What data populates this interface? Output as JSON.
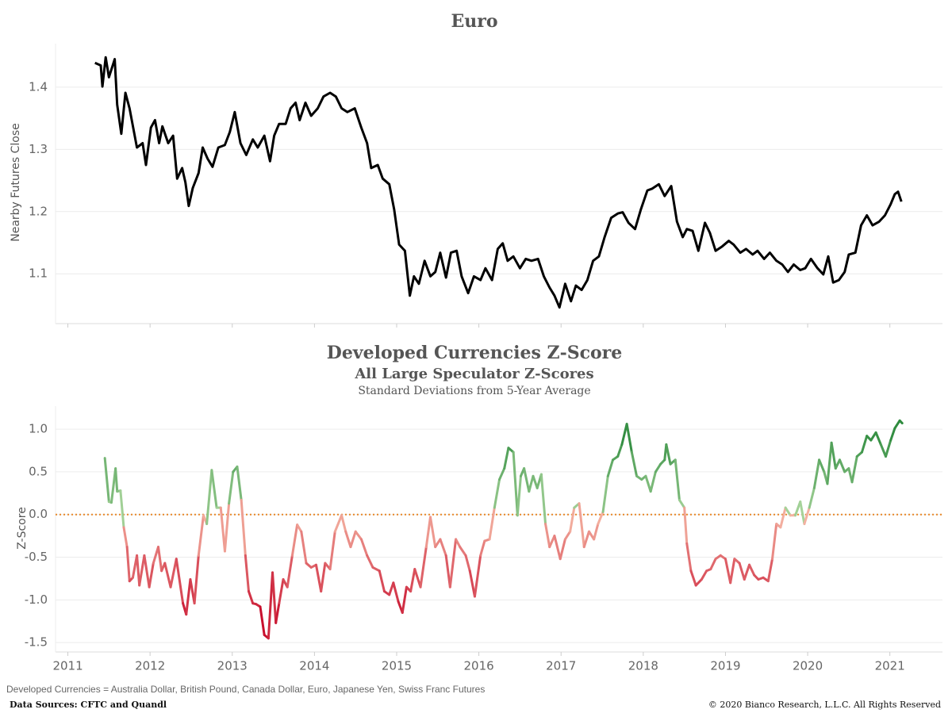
{
  "chart_data": [
    {
      "type": "line",
      "title": "Euro",
      "y_label": "Nearby Futures Close",
      "color": "#000000",
      "xlim": [
        2010.85,
        2021.64
      ],
      "xticks": [
        2011,
        2012,
        2013,
        2014,
        2015,
        2016,
        2017,
        2018,
        2019,
        2020,
        2021
      ],
      "show_x_labels": false,
      "ylim": [
        1.02,
        1.47
      ],
      "yticks": [
        1.1,
        1.2,
        1.3,
        1.4
      ],
      "grid": true,
      "x": [
        2011.33,
        2011.4,
        2011.42,
        2011.46,
        2011.5,
        2011.57,
        2011.6,
        2011.65,
        2011.7,
        2011.75,
        2011.84,
        2011.91,
        2011.95,
        2012.01,
        2012.06,
        2012.11,
        2012.15,
        2012.22,
        2012.28,
        2012.33,
        2012.39,
        2012.43,
        2012.47,
        2012.52,
        2012.59,
        2012.64,
        2012.7,
        2012.76,
        2012.83,
        2012.91,
        2012.97,
        2013.03,
        2013.1,
        2013.17,
        2013.25,
        2013.31,
        2013.39,
        2013.46,
        2013.51,
        2013.57,
        2013.65,
        2013.71,
        2013.77,
        2013.82,
        2013.89,
        2013.96,
        2014.04,
        2014.11,
        2014.19,
        2014.26,
        2014.33,
        2014.4,
        2014.49,
        2014.57,
        2014.64,
        2014.69,
        2014.77,
        2014.83,
        2014.91,
        2014.97,
        2015.03,
        2015.1,
        2015.16,
        2015.21,
        2015.27,
        2015.34,
        2015.41,
        2015.47,
        2015.53,
        2015.6,
        2015.66,
        2015.73,
        2015.79,
        2015.87,
        2015.94,
        2016.02,
        2016.08,
        2016.16,
        2016.23,
        2016.29,
        2016.35,
        2016.42,
        2016.5,
        2016.57,
        2016.64,
        2016.72,
        2016.79,
        2016.86,
        2016.92,
        2016.98,
        2017.05,
        2017.12,
        2017.18,
        2017.25,
        2017.32,
        2017.39,
        2017.46,
        2017.53,
        2017.61,
        2017.69,
        2017.75,
        2017.82,
        2017.9,
        2017.97,
        2018.05,
        2018.11,
        2018.19,
        2018.26,
        2018.34,
        2018.41,
        2018.48,
        2018.53,
        2018.6,
        2018.67,
        2018.75,
        2018.81,
        2018.88,
        2018.96,
        2019.04,
        2019.1,
        2019.18,
        2019.25,
        2019.33,
        2019.39,
        2019.47,
        2019.54,
        2019.62,
        2019.69,
        2019.76,
        2019.83,
        2019.91,
        2019.97,
        2020.04,
        2020.12,
        2020.19,
        2020.25,
        2020.31,
        2020.38,
        2020.45,
        2020.5,
        2020.58,
        2020.65,
        2020.72,
        2020.79,
        2020.87,
        2020.94,
        2021.01,
        2021.06,
        2021.1,
        2021.14
      ],
      "values": [
        1.439,
        1.435,
        1.401,
        1.448,
        1.416,
        1.445,
        1.372,
        1.325,
        1.391,
        1.366,
        1.303,
        1.31,
        1.275,
        1.335,
        1.347,
        1.31,
        1.337,
        1.31,
        1.322,
        1.253,
        1.27,
        1.247,
        1.209,
        1.238,
        1.262,
        1.303,
        1.285,
        1.272,
        1.303,
        1.307,
        1.328,
        1.36,
        1.31,
        1.291,
        1.316,
        1.303,
        1.322,
        1.281,
        1.322,
        1.341,
        1.341,
        1.366,
        1.375,
        1.347,
        1.375,
        1.354,
        1.366,
        1.385,
        1.391,
        1.385,
        1.366,
        1.36,
        1.366,
        1.335,
        1.31,
        1.27,
        1.275,
        1.253,
        1.244,
        1.203,
        1.147,
        1.137,
        1.065,
        1.096,
        1.084,
        1.121,
        1.096,
        1.103,
        1.134,
        1.094,
        1.134,
        1.137,
        1.096,
        1.069,
        1.096,
        1.09,
        1.109,
        1.09,
        1.14,
        1.149,
        1.121,
        1.128,
        1.109,
        1.124,
        1.121,
        1.124,
        1.096,
        1.078,
        1.065,
        1.046,
        1.084,
        1.056,
        1.081,
        1.074,
        1.09,
        1.121,
        1.128,
        1.159,
        1.19,
        1.197,
        1.199,
        1.182,
        1.172,
        1.203,
        1.234,
        1.237,
        1.244,
        1.225,
        1.241,
        1.184,
        1.159,
        1.172,
        1.169,
        1.137,
        1.182,
        1.166,
        1.137,
        1.144,
        1.153,
        1.147,
        1.134,
        1.14,
        1.131,
        1.137,
        1.124,
        1.134,
        1.121,
        1.115,
        1.103,
        1.115,
        1.106,
        1.109,
        1.124,
        1.109,
        1.099,
        1.128,
        1.086,
        1.09,
        1.103,
        1.131,
        1.134,
        1.178,
        1.194,
        1.178,
        1.184,
        1.194,
        1.212,
        1.228,
        1.232,
        1.216
      ]
    },
    {
      "type": "line",
      "title": "Developed Currencies Z-Score",
      "subtitle": "All Large Speculator Z-Scores",
      "subtitle2": "Standard Deviations from 5-Year Average",
      "y_label": "Z-Score",
      "color_scale": {
        "negative": "#c8102e",
        "near_zero_negative": "#f4b3a2",
        "near_zero_positive": "#a9d59c",
        "positive": "#2e8b3e"
      },
      "reference_line": {
        "value": 0,
        "color": "#e8892a"
      },
      "xlim": [
        2010.85,
        2021.64
      ],
      "xticks": [
        2011,
        2012,
        2013,
        2014,
        2015,
        2016,
        2017,
        2018,
        2019,
        2020,
        2021
      ],
      "show_x_labels": true,
      "ylim": [
        -1.61,
        1.27
      ],
      "yticks": [
        -1.5,
        {
          "value": -1,
          "label": "-1.0"
        },
        -0.5,
        {
          "value": 0,
          "label": "0.0"
        },
        0.5,
        {
          "value": 1,
          "label": "1.0"
        }
      ],
      "grid": true,
      "x": [
        2011.45,
        2011.5,
        2011.53,
        2011.58,
        2011.6,
        2011.64,
        2011.68,
        2011.72,
        2011.75,
        2011.79,
        2011.84,
        2011.87,
        2011.93,
        2011.99,
        2012.04,
        2012.1,
        2012.14,
        2012.18,
        2012.25,
        2012.32,
        2012.4,
        2012.44,
        2012.49,
        2012.54,
        2012.59,
        2012.65,
        2012.69,
        2012.75,
        2012.81,
        2012.86,
        2012.91,
        2012.96,
        2013.01,
        2013.06,
        2013.11,
        2013.16,
        2013.2,
        2013.25,
        2013.29,
        2013.34,
        2013.39,
        2013.44,
        2013.49,
        2013.53,
        2013.57,
        2013.62,
        2013.67,
        2013.73,
        2013.79,
        2013.84,
        2013.9,
        2013.96,
        2014.02,
        2014.08,
        2014.13,
        2014.19,
        2014.25,
        2014.33,
        2014.38,
        2014.44,
        2014.5,
        2014.57,
        2014.64,
        2014.71,
        2014.79,
        2014.85,
        2014.91,
        2014.96,
        2015.02,
        2015.07,
        2015.12,
        2015.17,
        2015.22,
        2015.29,
        2015.36,
        2015.41,
        2015.47,
        2015.53,
        2015.6,
        2015.65,
        2015.72,
        2015.77,
        2015.84,
        2015.89,
        2015.95,
        2016.02,
        2016.07,
        2016.13,
        2016.19,
        2016.25,
        2016.31,
        2016.36,
        2016.42,
        2016.47,
        2016.51,
        2016.55,
        2016.61,
        2016.66,
        2016.71,
        2016.76,
        2016.81,
        2016.86,
        2016.92,
        2016.99,
        2017.05,
        2017.11,
        2017.16,
        2017.22,
        2017.28,
        2017.34,
        2017.4,
        2017.45,
        2017.51,
        2017.57,
        2017.63,
        2017.69,
        2017.74,
        2017.8,
        2017.86,
        2017.92,
        2017.98,
        2018.03,
        2018.09,
        2018.15,
        2018.21,
        2018.26,
        2018.28,
        2018.33,
        2018.39,
        2018.44,
        2018.5,
        2018.53,
        2018.58,
        2018.64,
        2018.71,
        2018.77,
        2018.82,
        2018.88,
        2018.94,
        2019.0,
        2019.06,
        2019.11,
        2019.17,
        2019.23,
        2019.29,
        2019.35,
        2019.4,
        2019.46,
        2019.52,
        2019.57,
        2019.62,
        2019.67,
        2019.73,
        2019.79,
        2019.85,
        2019.91,
        2019.96,
        2020.02,
        2020.08,
        2020.14,
        2020.2,
        2020.24,
        2020.29,
        2020.34,
        2020.39,
        2020.45,
        2020.5,
        2020.54,
        2020.6,
        2020.66,
        2020.72,
        2020.77,
        2020.83,
        2020.89,
        2020.95,
        2021.01,
        2021.06,
        2021.12,
        2021.15
      ],
      "values": [
        0.66,
        0.15,
        0.14,
        0.54,
        0.27,
        0.28,
        -0.15,
        -0.38,
        -0.78,
        -0.74,
        -0.48,
        -0.83,
        -0.48,
        -0.85,
        -0.57,
        -0.38,
        -0.66,
        -0.57,
        -0.85,
        -0.52,
        -1.04,
        -1.17,
        -0.76,
        -1.04,
        -0.48,
        -0.01,
        -0.11,
        0.52,
        0.08,
        0.08,
        -0.43,
        0.13,
        0.5,
        0.56,
        0.17,
        -0.48,
        -0.9,
        -1.04,
        -1.05,
        -1.08,
        -1.41,
        -1.45,
        -0.68,
        -1.27,
        -1.04,
        -0.76,
        -0.85,
        -0.48,
        -0.12,
        -0.2,
        -0.57,
        -0.62,
        -0.59,
        -0.9,
        -0.57,
        -0.64,
        -0.2,
        -0.01,
        -0.2,
        -0.38,
        -0.2,
        -0.29,
        -0.48,
        -0.62,
        -0.66,
        -0.9,
        -0.94,
        -0.8,
        -1.02,
        -1.15,
        -0.85,
        -0.9,
        -0.64,
        -0.85,
        -0.38,
        -0.03,
        -0.38,
        -0.29,
        -0.48,
        -0.85,
        -0.29,
        -0.38,
        -0.48,
        -0.66,
        -0.96,
        -0.48,
        -0.31,
        -0.29,
        0.08,
        0.41,
        0.54,
        0.78,
        0.73,
        -0.01,
        0.45,
        0.54,
        0.27,
        0.45,
        0.31,
        0.47,
        -0.11,
        -0.38,
        -0.25,
        -0.52,
        -0.29,
        -0.2,
        0.08,
        0.13,
        -0.38,
        -0.2,
        -0.29,
        -0.11,
        0.03,
        0.45,
        0.64,
        0.68,
        0.82,
        1.06,
        0.73,
        0.45,
        0.41,
        0.45,
        0.27,
        0.5,
        0.59,
        0.64,
        0.82,
        0.59,
        0.64,
        0.17,
        0.08,
        -0.34,
        -0.66,
        -0.83,
        -0.76,
        -0.66,
        -0.64,
        -0.52,
        -0.48,
        -0.52,
        -0.8,
        -0.52,
        -0.57,
        -0.76,
        -0.59,
        -0.71,
        -0.76,
        -0.74,
        -0.78,
        -0.52,
        -0.11,
        -0.15,
        0.08,
        -0.01,
        -0.01,
        0.15,
        -0.11,
        0.08,
        0.31,
        0.64,
        0.5,
        0.36,
        0.84,
        0.54,
        0.64,
        0.5,
        0.54,
        0.38,
        0.68,
        0.73,
        0.92,
        0.87,
        0.96,
        0.82,
        0.68,
        0.87,
        1.01,
        1.1,
        1.07
      ]
    }
  ],
  "footer": {
    "note": "Developed Currencies = Australia Dollar, British Pound, Canada Dollar, Euro, Japanese Yen, Swiss Franc Futures",
    "source": "Data Sources: CFTC and Quandl",
    "copyright": "© 2020 Bianco Research, L.L.C. All Rights Reserved"
  }
}
